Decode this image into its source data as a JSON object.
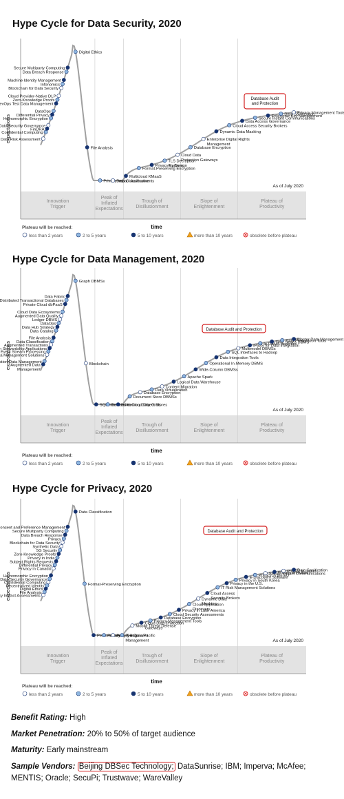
{
  "charts": [
    {
      "title": "Hype Cycle for Data Security, 2020",
      "ylabel": "expectations",
      "xlabel": "time",
      "as_of": "As of July 2020",
      "phases": [
        "Innovation\nTrigger",
        "Peak of\nInflated\nExpectations",
        "Trough of\nDisillusionment",
        "Slope of\nEnlightenment",
        "Plateau of\nProductivity"
      ],
      "plateau_label": "Plateau will be reached:",
      "legend": [
        "less than 2 years",
        "2 to 5 years",
        "5 to 10 years",
        "more than 10 years",
        "obsolete before plateau"
      ],
      "highlight": "Database Audit\nand Protection",
      "labels": [
        "Secure Multiparty Computing",
        "Data Breach Response",
        "Machine Identity Management",
        "Infonomics",
        "Blockchain for Data Security",
        "Cloud Provider-Native DLP",
        "Zero-Knowledge Proofs",
        "DevOps Test Data Management",
        "DataOps",
        "Differential Privacy",
        "Homomorphic Encryption",
        "Data Security Governance",
        "FinDRA",
        "Confidential Computing",
        "Data Risk Assessment",
        "Digital Ethics",
        "File Analysis",
        "Privacy Impact Assessments",
        "Data Classification",
        "Multicloud KMaaS",
        "Format-Preserving Encryption",
        "Privacy by Design",
        "TLS Decryption\nPlatform",
        "Cloud Data\nProtection Gateways",
        "Database Encryption",
        "Enterprise Digital Rights\nManagement",
        "Dynamic Data Masking",
        "Cloud Access Security Brokers",
        "Data Access Governance",
        "Secure Instant Communications",
        "Enterprise Key Management",
        "Data Sanitization",
        "Privacy Management Tools"
      ]
    },
    {
      "title": "Hype Cycle for Data Management, 2020",
      "ylabel": "expectations",
      "xlabel": "time",
      "as_of": "As of July 2020",
      "phases": [
        "Innovation\nTrigger",
        "Peak of\nInflated\nExpectations",
        "Trough of\nDisillusionment",
        "Slope of\nEnlightenment",
        "Plateau of\nProductivity"
      ],
      "plateau_label": "Plateau will be reached:",
      "legend": [
        "less than 2 years",
        "2 to 5 years",
        "5 to 10 years",
        "more than 10 years",
        "obsolete before plateau"
      ],
      "highlight": "Database Audit and Protection",
      "labels": [
        "Data Fabric",
        "Distributed Transactional Databases",
        "Private Cloud dbPaaS",
        "Cloud Data Ecosystems",
        "Augmented Data Quality",
        "Ledger DBMS",
        "DataOps",
        "Data Hub Strategy",
        "Data Catalog",
        "File Analysis",
        "Data Classification",
        "Augmented Transactions",
        "Information Stewardship Applications",
        "Event Stream Processing",
        "Metadata Management Solutions",
        "Application Data Management",
        "Augmented Data\nManagement",
        "Graph DBMSs",
        "Blockchain",
        "SQL Interfaces to Cloud Object Stores",
        "Data Lakes",
        "In-Memory Data Grids",
        "Document Store DBMSs",
        "Database Encryption",
        "Data Virtualization",
        "Content Migration",
        "Logical Data Warehouse",
        "Apache Spark",
        "Wide-Column DBMSs",
        "Operational In-Memory DBMS",
        "Data Integration Tools",
        "SQL Interfaces to Hadoop",
        "Multimodel DBMSs",
        "iPaaS for Data Integration",
        "In-DBMS Analytics",
        "Time Series DBMS",
        "Data Preparation Tools",
        "Master Data Management"
      ]
    },
    {
      "title": "Hype Cycle for Privacy, 2020",
      "ylabel": "expectations",
      "xlabel": "time",
      "as_of": "As of July 2020",
      "phases": [
        "Innovation\nTrigger",
        "Peak of\nInflated\nExpectations",
        "Trough of\nDisillusionment",
        "Slope of\nEnlightenment",
        "Plateau of\nProductivity"
      ],
      "plateau_label": "Plateau will be reached:",
      "legend": [
        "less than 2 years",
        "2 to 5 years",
        "5 to 10 years",
        "more than 10 years",
        "obsolete before plateau"
      ],
      "highlight": "Database Audit and Protection",
      "labels": [
        "Consent and Preference Management",
        "Secure Multiparty Computing",
        "Data Breach Response",
        "Privacy",
        "Blockchain for Data Security",
        "Synthetic Data",
        "5G Security",
        "Zero-Knowledge Proofs",
        "Privacy in India",
        "Subject Rights Requests",
        "Differential Privacy",
        "Privacy in Canada",
        "Homomorphic Encryption",
        "Data Security Governance",
        "Confidential Computing",
        "Decentralized Identity",
        "Digital Ethics",
        "File Analysis",
        "Privacy Impact Assessments",
        "Data Classification",
        "Format-Preserving Encryption",
        "Personification",
        "Privacy by Design",
        "Privacy in Asia/Pacific",
        "PHI Consent\nManagement",
        "Mobile Threat Defense",
        "Cloud Data Protection\nGateways",
        "Privacy Management Tools",
        "Database Encryption",
        "Cloud Security Assessments",
        "Privacy in Latin America",
        "Cloud Application\nDiscovery",
        "Dynamic Data\nMasking",
        "Cloud Access\nSecurity Brokers",
        "IT Risk Management Solutions",
        "Privacy in the U.S.",
        "Privacy in South Korea",
        "E-Discovery Software",
        "Privacy in the EU",
        "Secure Instant Communications",
        "Privacy in Russia",
        "Privacy in Japan",
        "Data Sanitization"
      ]
    }
  ],
  "details": {
    "benefit_label": "Benefit Rating:",
    "benefit_value": "High",
    "market_label": "Market Penetration:",
    "market_value": "20% to 50% of target audience",
    "maturity_label": "Maturity:",
    "maturity_value": "Early mainstream",
    "vendors_label": "Sample Vendors:",
    "vendor_highlight": "Beijing DBSec Technology;",
    "vendors_rest": "DataSunrise; IBM; Imperva; McAfee; MENTIS; Oracle; SecuPi; Trustwave; WareValley"
  },
  "colors": {
    "less_than_2": "#ffffff",
    "two_to_five": "#8fb7e0",
    "five_to_ten": "#16336f",
    "more_than_10": "#f2a21c",
    "obsolete": "#e03030",
    "highlight_border": "#d32020",
    "phase_band": "#e3e3e3",
    "curve": "#a0a0a0"
  }
}
